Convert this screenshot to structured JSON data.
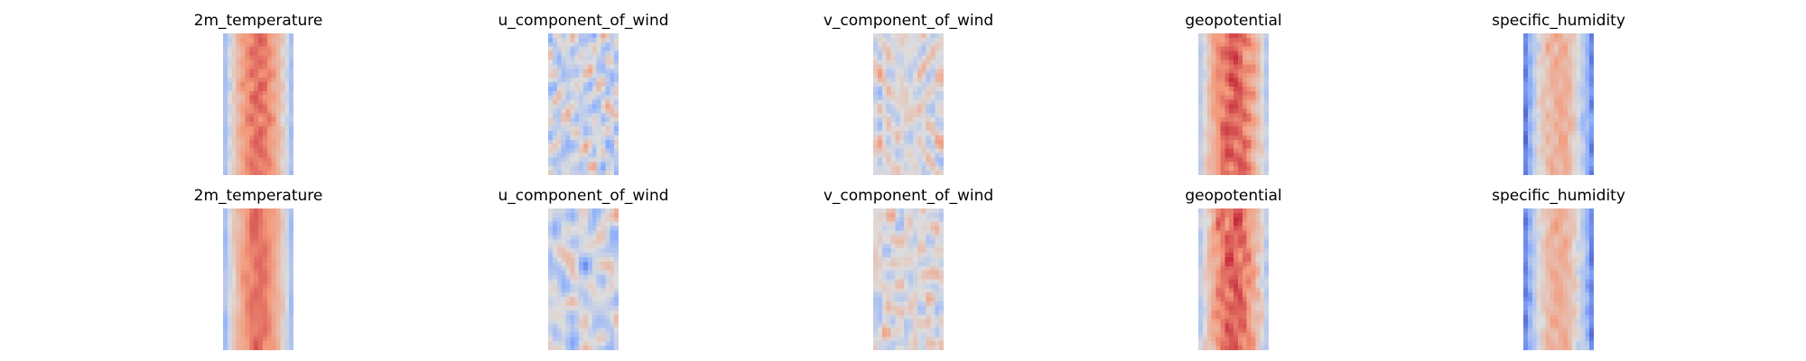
{
  "figure": {
    "rows": [
      {
        "row": "top",
        "panels": [
          {
            "title": "2m_temperature",
            "field": "2m_temperature"
          },
          {
            "title": "u_component_of_wind",
            "field": "u_component_of_wind"
          },
          {
            "title": "v_component_of_wind",
            "field": "v_component_of_wind"
          },
          {
            "title": "geopotential",
            "field": "geopotential"
          },
          {
            "title": "specific_humidity",
            "field": "specific_humidity"
          }
        ]
      },
      {
        "row": "bottom",
        "panels": [
          {
            "title": "2m_temperature",
            "field": "2m_temperature"
          },
          {
            "title": "u_component_of_wind",
            "field": "u_component_of_wind"
          },
          {
            "title": "v_component_of_wind",
            "field": "v_component_of_wind"
          },
          {
            "title": "geopotential",
            "field": "geopotential"
          },
          {
            "title": "specific_humidity",
            "field": "specific_humidity"
          }
        ]
      }
    ],
    "colormap": "coolwarm",
    "colors": {
      "cold": "#3b4cc0",
      "neutral": "#dddddd",
      "warm": "#b40426"
    }
  },
  "chart_data": [
    {
      "type": "heatmap",
      "title": "2m_temperature",
      "colormap": "coolwarm",
      "axes": "off",
      "description_of_pattern": "warm band"
    },
    {
      "type": "heatmap",
      "title": "u_component_of_wind",
      "colormap": "coolwarm",
      "axes": "off"
    },
    {
      "type": "heatmap",
      "title": "v_component_of_wind",
      "colormap": "coolwarm",
      "axes": "off"
    },
    {
      "type": "heatmap",
      "title": "geopotential",
      "colormap": "coolwarm",
      "axes": "off"
    },
    {
      "type": "heatmap",
      "title": "specific_humidity",
      "colormap": "coolwarm",
      "axes": "off"
    },
    {
      "type": "heatmap",
      "title": "2m_temperature",
      "colormap": "coolwarm",
      "axes": "off"
    },
    {
      "type": "heatmap",
      "title": "u_component_of_wind",
      "colormap": "coolwarm",
      "axes": "off"
    },
    {
      "type": "heatmap",
      "title": "v_component_of_wind",
      "colormap": "coolwarm",
      "axes": "off"
    },
    {
      "type": "heatmap",
      "title": "geopotential",
      "colormap": "coolwarm",
      "axes": "off"
    },
    {
      "type": "heatmap",
      "title": "specific_humidity",
      "colormap": "coolwarm",
      "axes": "off"
    }
  ]
}
